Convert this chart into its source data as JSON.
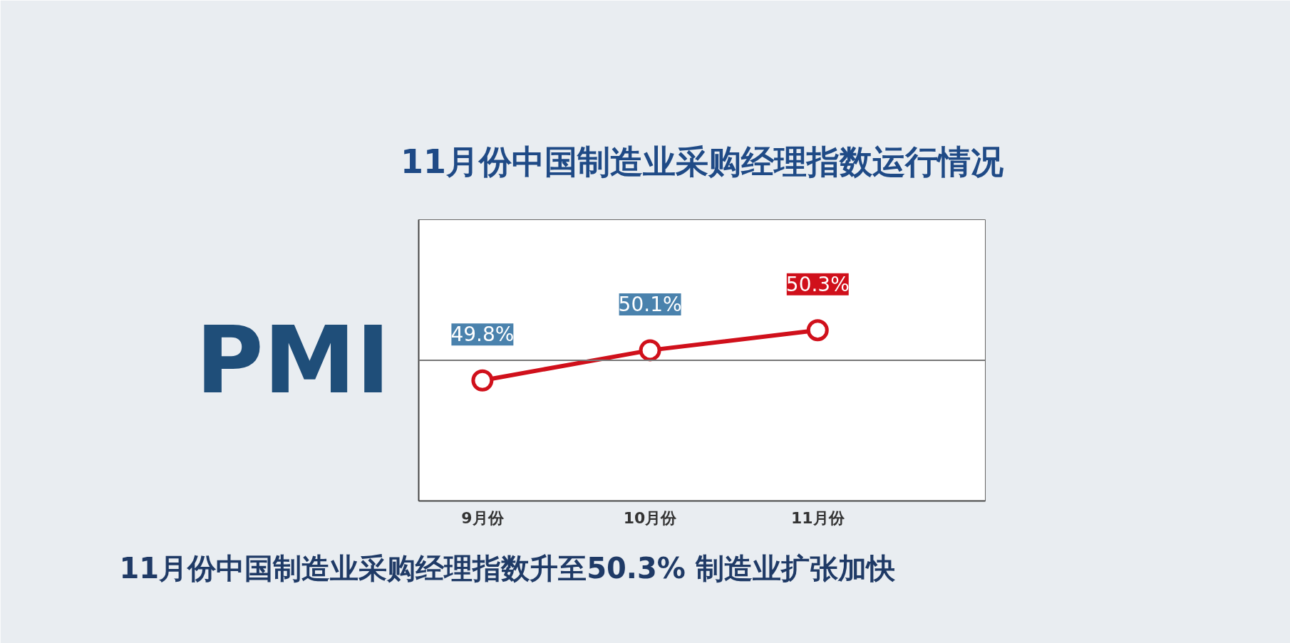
{
  "chart_data": {
    "type": "line",
    "title": "11月份中国制造业采购经理指数运行情况",
    "ylabel": "PMI",
    "categories": [
      "9月份",
      "10月份",
      "11月份"
    ],
    "series": [
      {
        "color": "#d0101b",
        "values": [
          49.8,
          50.1,
          50.3
        ],
        "value_labels": [
          "49.8%",
          "50.1%",
          "50.3%"
        ]
      }
    ],
    "ylim": [
      48.6,
      51.4
    ],
    "ref_lines": [
      {
        "axis": "y",
        "value": 50,
        "color": "#777777"
      }
    ],
    "marker": "circle",
    "line_style": "solid",
    "grid": false,
    "tick_labels": "x",
    "annotations": [
      "11月份中国制造业采购经理指数升至50.3% 制造业扩张加快"
    ]
  }
}
